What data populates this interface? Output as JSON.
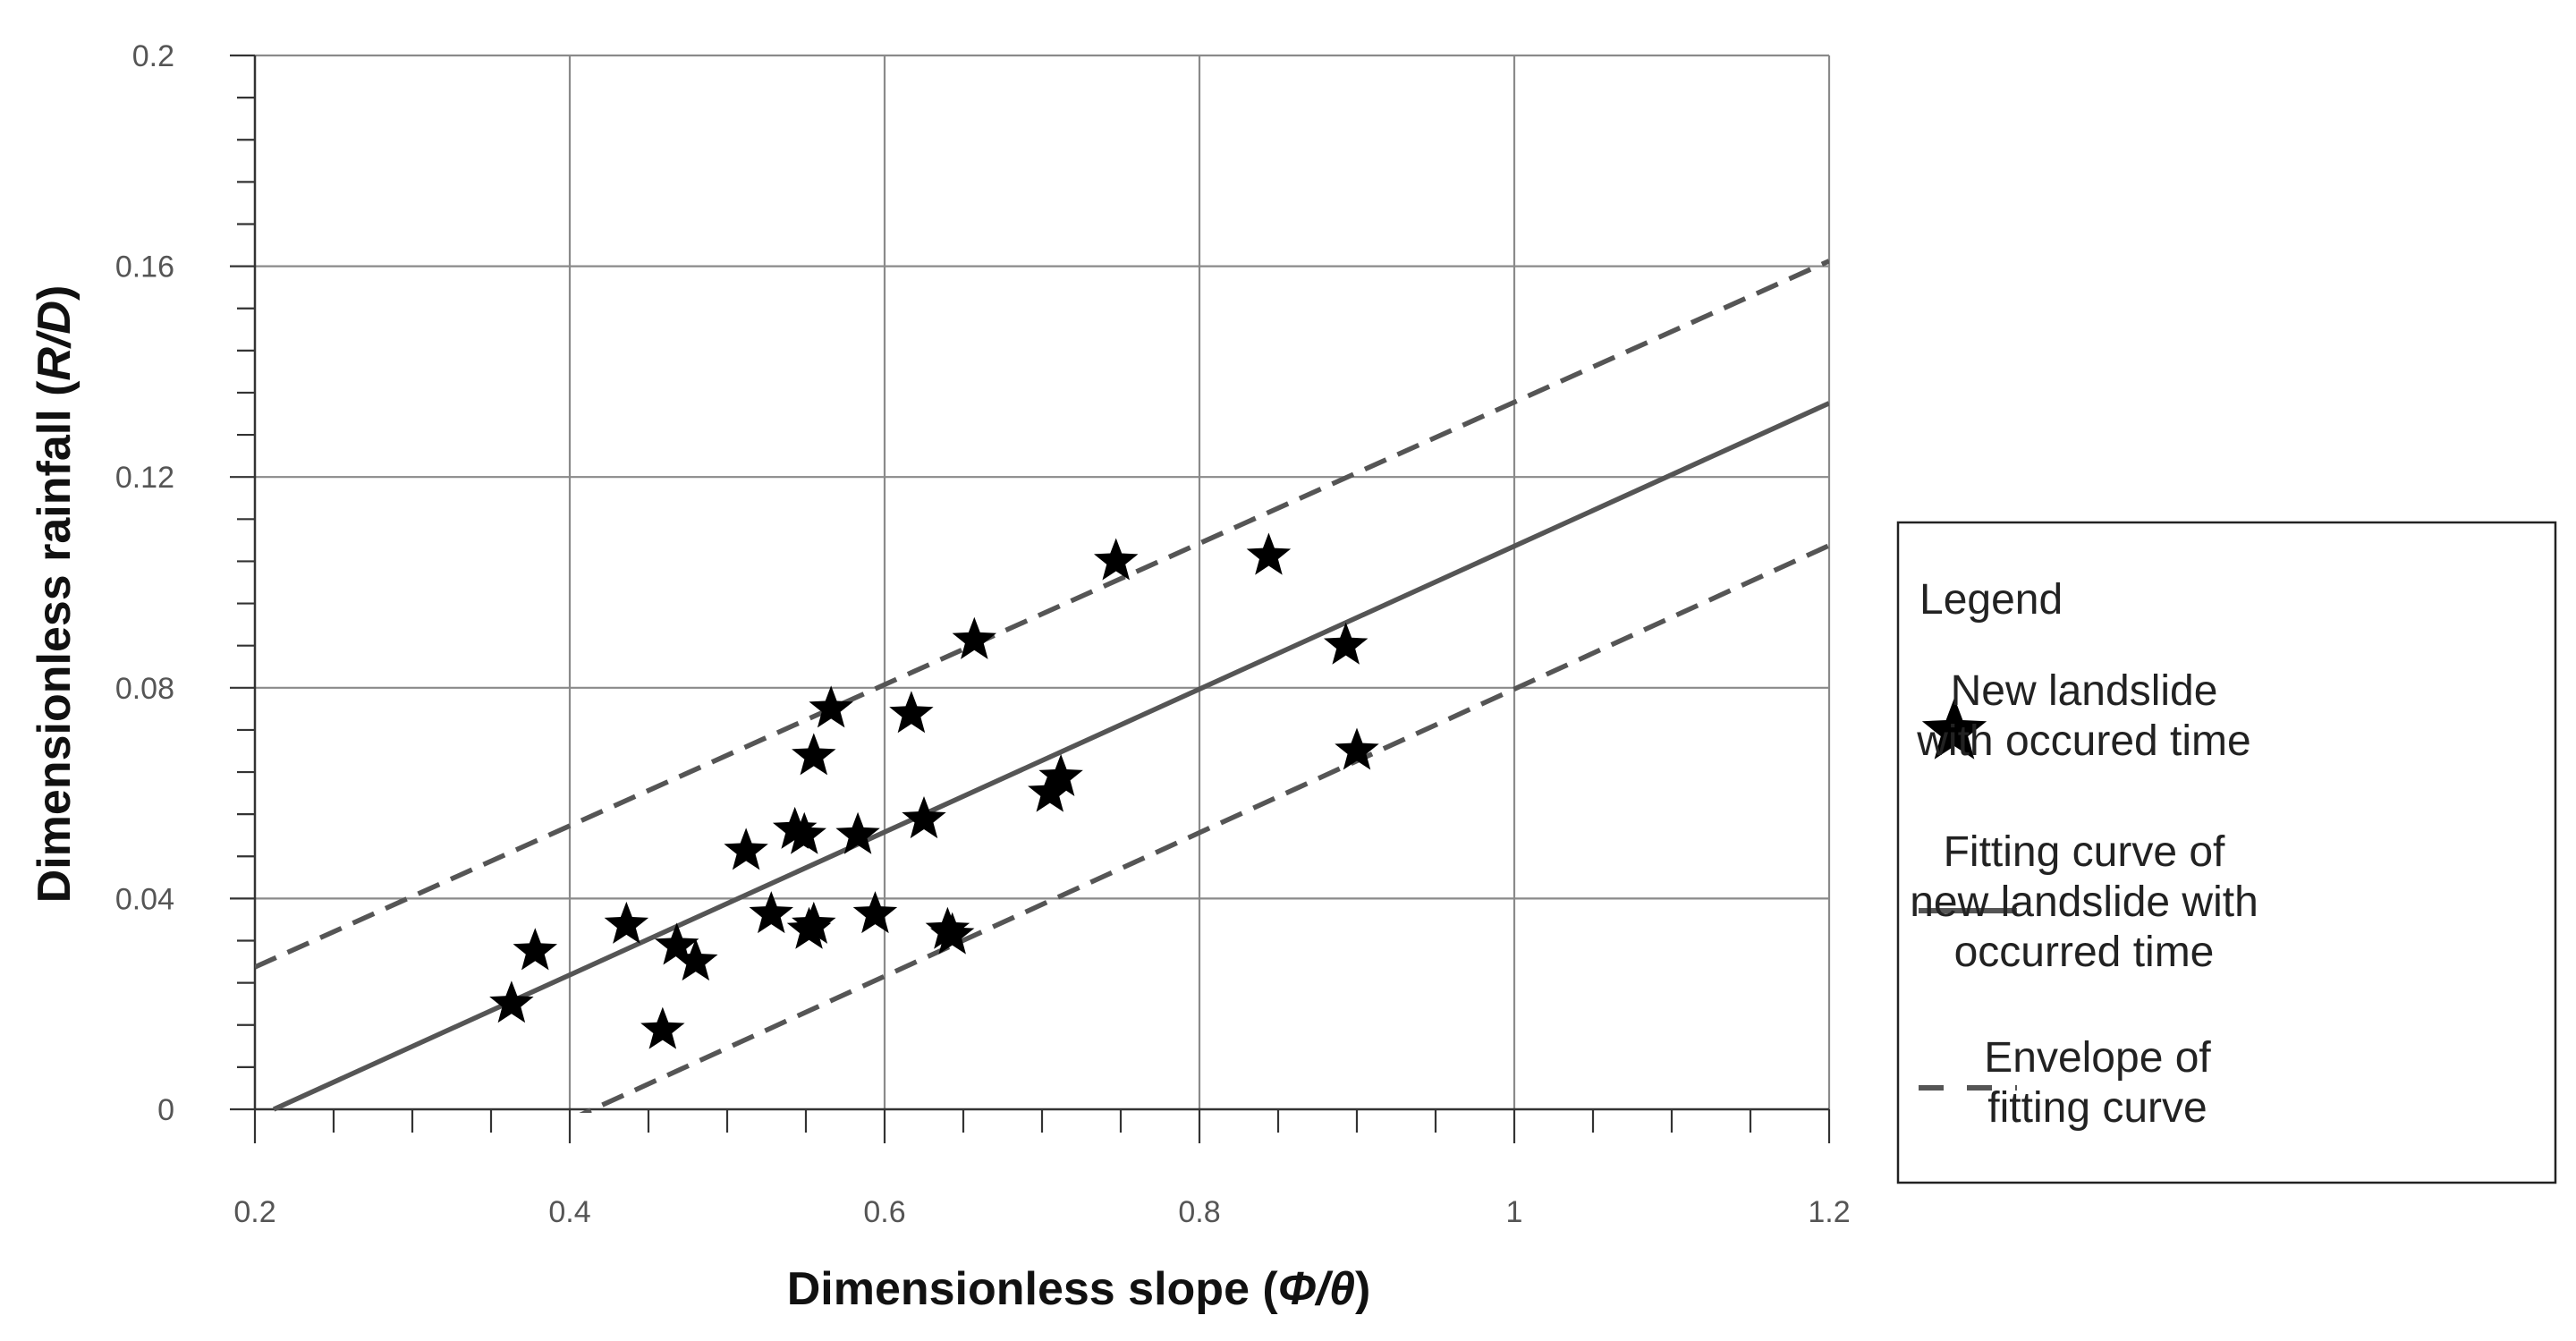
{
  "chart_data": {
    "type": "scatter",
    "title": "",
    "xlabel_main": "Dimensionless slope (",
    "xlabel_symbol": "Φ/θ",
    "xlabel_close": ")",
    "ylabel_main": "Dimensionless rainfall (",
    "ylabel_symbol": "R/D",
    "ylabel_close": ")",
    "xlim": [
      0.2,
      1.2
    ],
    "ylim": [
      0,
      0.2
    ],
    "x_ticks": [
      0.2,
      0.4,
      0.6,
      0.8,
      1.0,
      1.2
    ],
    "x_tick_labels": [
      "0.2",
      "0.4",
      "0.6",
      "0.8",
      "1",
      "1.2"
    ],
    "y_ticks": [
      0,
      0.04,
      0.08,
      0.12,
      0.16,
      0.2
    ],
    "y_tick_labels": [
      "0",
      "0.04",
      "0.08",
      "0.12",
      "0.16",
      "0.2"
    ],
    "grid": true,
    "series": [
      {
        "name": "New landslide with occured time",
        "kind": "scatter",
        "marker": "star",
        "color": "#000000",
        "points": [
          {
            "x": 0.363,
            "y": 0.02
          },
          {
            "x": 0.378,
            "y": 0.03
          },
          {
            "x": 0.436,
            "y": 0.035
          },
          {
            "x": 0.459,
            "y": 0.015
          },
          {
            "x": 0.468,
            "y": 0.031
          },
          {
            "x": 0.48,
            "y": 0.028
          },
          {
            "x": 0.512,
            "y": 0.049
          },
          {
            "x": 0.528,
            "y": 0.037
          },
          {
            "x": 0.543,
            "y": 0.053
          },
          {
            "x": 0.549,
            "y": 0.052
          },
          {
            "x": 0.552,
            "y": 0.034
          },
          {
            "x": 0.555,
            "y": 0.035
          },
          {
            "x": 0.555,
            "y": 0.067
          },
          {
            "x": 0.566,
            "y": 0.076
          },
          {
            "x": 0.583,
            "y": 0.052
          },
          {
            "x": 0.594,
            "y": 0.037
          },
          {
            "x": 0.617,
            "y": 0.075
          },
          {
            "x": 0.625,
            "y": 0.055
          },
          {
            "x": 0.64,
            "y": 0.034
          },
          {
            "x": 0.643,
            "y": 0.033
          },
          {
            "x": 0.657,
            "y": 0.089
          },
          {
            "x": 0.705,
            "y": 0.06
          },
          {
            "x": 0.712,
            "y": 0.063
          },
          {
            "x": 0.747,
            "y": 0.104
          },
          {
            "x": 0.844,
            "y": 0.105
          },
          {
            "x": 0.893,
            "y": 0.088
          },
          {
            "x": 0.9,
            "y": 0.068
          }
        ]
      },
      {
        "name": "Fitting curve of new landslide with occurred time",
        "kind": "line",
        "style": "solid",
        "color": "#555555",
        "points": [
          {
            "x": 0.212,
            "y": 0.0
          },
          {
            "x": 1.2,
            "y": 0.134
          }
        ]
      },
      {
        "name": "Envelope of fitting curve",
        "kind": "line",
        "style": "dashed",
        "color": "#555555",
        "points": [
          {
            "x": 0.2,
            "y": 0.027
          },
          {
            "x": 1.2,
            "y": 0.161
          }
        ]
      },
      {
        "name": "Envelope of fitting curve",
        "kind": "line",
        "style": "dashed",
        "color": "#555555",
        "points": [
          {
            "x": 0.4,
            "y": -0.002
          },
          {
            "x": 1.2,
            "y": 0.107
          }
        ]
      }
    ],
    "legend": {
      "title": "Legend",
      "placement": "right",
      "items": [
        {
          "type": "star",
          "lines": [
            "New landslide",
            "with occured time"
          ]
        },
        {
          "type": "solid",
          "lines": [
            "Fitting curve of",
            "new landslide with",
            "occurred time"
          ]
        },
        {
          "type": "dashed",
          "lines": [
            "Envelope of",
            "fitting curve"
          ]
        }
      ]
    }
  }
}
